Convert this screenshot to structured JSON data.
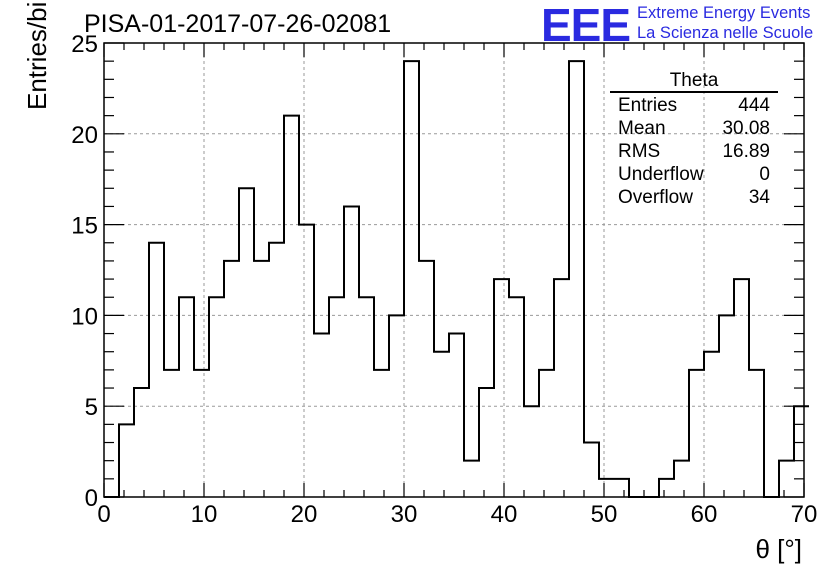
{
  "title": "PISA-01-2017-07-26-02081",
  "logo": {
    "text": "EEE",
    "line1": "Extreme Energy Events",
    "line2": "La Scienza nelle Scuole",
    "color": "#2a2ae0"
  },
  "stats": {
    "name": "Theta",
    "rows": [
      {
        "label": "Entries",
        "value": "444"
      },
      {
        "label": "Mean",
        "value": "30.08"
      },
      {
        "label": "RMS",
        "value": "16.89"
      },
      {
        "label": "Underflow",
        "value": "0"
      },
      {
        "label": "Overflow",
        "value": "34"
      }
    ]
  },
  "chart_data": {
    "type": "histogram",
    "xlabel": "θ [°]",
    "ylabel": "Entries/bin",
    "xlim": [
      0,
      70
    ],
    "ylim": [
      0,
      25
    ],
    "x_ticks": [
      0,
      10,
      20,
      30,
      40,
      50,
      60,
      70
    ],
    "y_ticks": [
      0,
      5,
      10,
      15,
      20,
      25
    ],
    "bin_width": 1.5,
    "bin_edges_start": 0,
    "values": [
      0,
      4,
      6,
      14,
      7,
      11,
      7,
      11,
      13,
      17,
      13,
      14,
      21,
      15,
      9,
      11,
      16,
      11,
      7,
      10,
      24,
      13,
      8,
      9,
      2,
      6,
      12,
      11,
      5,
      7,
      12,
      24,
      3,
      1,
      1,
      0,
      0,
      1,
      2,
      7,
      8,
      10,
      12,
      7,
      0,
      2,
      5
    ],
    "grid": true,
    "line_color": "#000000"
  }
}
